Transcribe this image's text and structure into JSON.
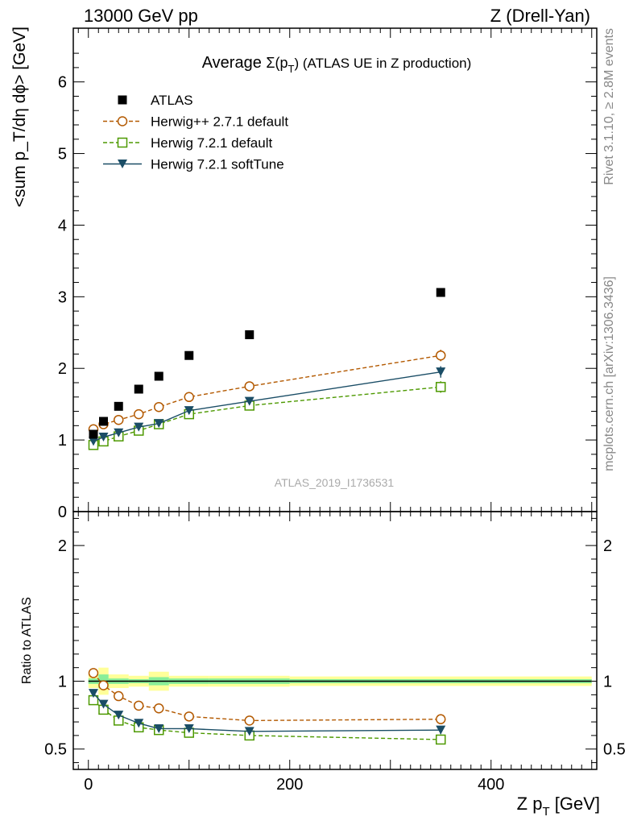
{
  "header": {
    "left": "13000 GeV pp",
    "right": "Z (Drell-Yan)"
  },
  "side_labels": {
    "rivet": "Rivet 3.1.10, ≥ 2.8M events",
    "mcplots": "mcplots.cern.ch [arXiv:1306.3436]"
  },
  "watermark": "ATLAS_2019_I1736531",
  "chart_data": [
    {
      "type": "scatter",
      "title_prefix": "Average ",
      "title_symbol": "Σ(p",
      "title_sub": "T",
      "title_suffix": ") (ATLAS UE in Z production)",
      "ylabel": "<sum p_T/dη dϕ> [GeV]",
      "ylim": [
        0,
        6.75
      ],
      "yticks": [
        0,
        1,
        2,
        3,
        4,
        5,
        6
      ],
      "xlim": [
        -15,
        505
      ],
      "legend_position": "top-left",
      "series": [
        {
          "name": "ATLAS",
          "color": "#000000",
          "marker": "filled-square",
          "line": "none",
          "x": [
            5,
            15,
            30,
            50,
            70,
            100,
            160,
            350
          ],
          "y": [
            1.08,
            1.26,
            1.47,
            1.71,
            1.89,
            2.18,
            2.47,
            3.06
          ]
        },
        {
          "name": "Herwig++ 2.7.1 default",
          "color": "#b35900",
          "marker": "open-circle",
          "line": "dashed",
          "x": [
            5,
            15,
            30,
            50,
            70,
            100,
            160,
            350
          ],
          "y": [
            1.15,
            1.22,
            1.28,
            1.36,
            1.46,
            1.6,
            1.75,
            2.18
          ],
          "err": [
            0,
            0,
            0,
            0,
            0,
            0,
            0,
            0.08
          ]
        },
        {
          "name": "Herwig 7.2.1 default",
          "color": "#4d9900",
          "marker": "open-square",
          "line": "dashed",
          "x": [
            5,
            15,
            30,
            50,
            70,
            100,
            160,
            350
          ],
          "y": [
            0.93,
            0.98,
            1.05,
            1.13,
            1.22,
            1.36,
            1.48,
            1.74
          ],
          "err": [
            0,
            0,
            0,
            0,
            0,
            0,
            0,
            0.08
          ]
        },
        {
          "name": "Herwig 7.2.1 softTune",
          "color": "#1a4d66",
          "marker": "filled-triangle-down",
          "line": "solid",
          "x": [
            5,
            15,
            30,
            50,
            70,
            100,
            160,
            350
          ],
          "y": [
            0.98,
            1.04,
            1.1,
            1.18,
            1.23,
            1.41,
            1.54,
            1.95
          ],
          "err": [
            0,
            0,
            0,
            0,
            0,
            0,
            0,
            0.08
          ]
        }
      ]
    },
    {
      "type": "scatter",
      "ylabel": "Ratio to ATLAS",
      "xlabel_main": "Z p",
      "xlabel_sub": "T",
      "xlabel_unit": "[GeV]",
      "ylim": [
        0.35,
        2.25
      ],
      "yticks": [
        0.5,
        1,
        2
      ],
      "ytick_labels": [
        "0.5",
        "1",
        "2"
      ],
      "xticks": [
        0,
        200,
        400
      ],
      "xtick_labels": [
        "0",
        "200",
        "400"
      ],
      "xlim": [
        -15,
        505
      ],
      "reference_line": 1,
      "bands": [
        {
          "x0": 0,
          "x1": 10,
          "y0": 0.95,
          "y1": 1.05,
          "y0i": 0.98,
          "y1i": 1.02
        },
        {
          "x0": 10,
          "x1": 20,
          "y0": 0.9,
          "y1": 1.1,
          "y0i": 0.95,
          "y1i": 1.05
        },
        {
          "x0": 20,
          "x1": 40,
          "y0": 0.95,
          "y1": 1.05,
          "y0i": 0.98,
          "y1i": 1.02
        },
        {
          "x0": 40,
          "x1": 60,
          "y0": 0.96,
          "y1": 1.04,
          "y0i": 0.985,
          "y1i": 1.015
        },
        {
          "x0": 60,
          "x1": 80,
          "y0": 0.93,
          "y1": 1.07,
          "y0i": 0.97,
          "y1i": 1.03
        },
        {
          "x0": 80,
          "x1": 120,
          "y0": 0.96,
          "y1": 1.04,
          "y0i": 0.98,
          "y1i": 1.02
        },
        {
          "x0": 120,
          "x1": 200,
          "y0": 0.96,
          "y1": 1.04,
          "y0i": 0.98,
          "y1i": 1.02
        },
        {
          "x0": 200,
          "x1": 500,
          "y0": 0.965,
          "y1": 1.035,
          "y0i": 0.985,
          "y1i": 1.015
        }
      ],
      "series": [
        {
          "name": "Herwig++ 2.7.1 default",
          "color": "#b35900",
          "marker": "open-circle",
          "line": "dashed",
          "x": [
            5,
            15,
            30,
            50,
            70,
            100,
            160,
            350
          ],
          "y": [
            1.06,
            0.97,
            0.89,
            0.82,
            0.8,
            0.74,
            0.71,
            0.72
          ],
          "err": [
            0,
            0,
            0,
            0,
            0,
            0,
            0,
            0.03
          ]
        },
        {
          "name": "Herwig 7.2.1 default",
          "color": "#4d9900",
          "marker": "open-square",
          "line": "dashed",
          "x": [
            5,
            15,
            30,
            50,
            70,
            100,
            160,
            350
          ],
          "y": [
            0.86,
            0.79,
            0.71,
            0.66,
            0.64,
            0.62,
            0.6,
            0.57
          ],
          "err": [
            0,
            0,
            0,
            0,
            0,
            0,
            0,
            0.03
          ]
        },
        {
          "name": "Herwig 7.2.1 softTune",
          "color": "#1a4d66",
          "marker": "filled-triangle-down",
          "line": "solid",
          "x": [
            5,
            15,
            30,
            50,
            70,
            100,
            160,
            350
          ],
          "y": [
            0.91,
            0.83,
            0.75,
            0.69,
            0.65,
            0.65,
            0.63,
            0.64
          ],
          "err": [
            0,
            0,
            0,
            0,
            0,
            0,
            0,
            0.03
          ]
        }
      ]
    }
  ]
}
